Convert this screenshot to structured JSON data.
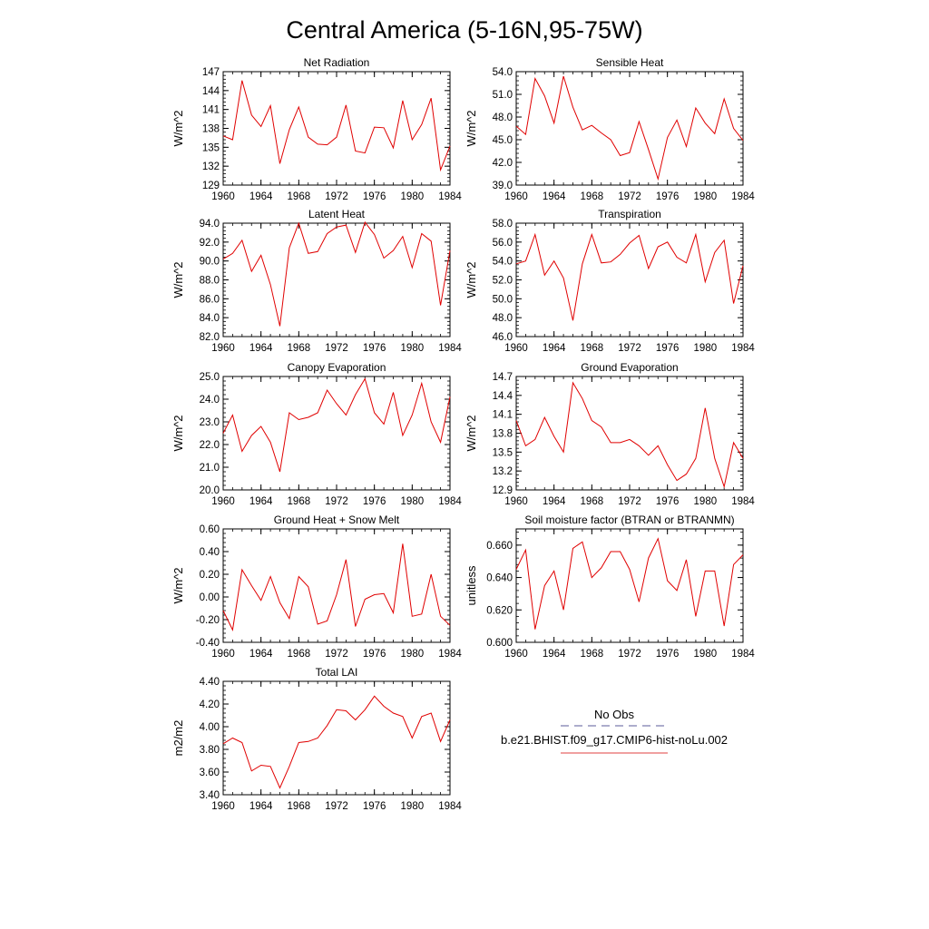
{
  "title": "Central America (5-16N,95-75W)",
  "chart_data": [
    {
      "type": "line",
      "title": "Net Radiation",
      "ylabel": "W/m^2",
      "ylim": [
        129,
        147
      ],
      "yticks": [
        "129",
        "132",
        "135",
        "138",
        "141",
        "144",
        "147"
      ],
      "xlim": [
        1960,
        1984
      ],
      "xticks": [
        "1960",
        "1964",
        "1968",
        "1972",
        "1976",
        "1980",
        "1984"
      ],
      "x": [
        1960,
        1961,
        1962,
        1963,
        1964,
        1965,
        1966,
        1967,
        1968,
        1969,
        1970,
        1971,
        1972,
        1973,
        1974,
        1975,
        1976,
        1977,
        1978,
        1979,
        1980,
        1981,
        1982,
        1983,
        1984
      ],
      "series": [
        {
          "values": [
            136.8,
            136.2,
            145.6,
            140.1,
            138.3,
            141.6,
            132.4,
            137.8,
            141.4,
            136.6,
            135.5,
            135.4,
            136.6,
            141.7,
            134.4,
            134.1,
            138.2,
            138.1,
            134.9,
            142.4,
            136.2,
            138.6,
            142.8,
            131.4,
            135.2
          ]
        }
      ]
    },
    {
      "type": "line",
      "title": "Sensible Heat",
      "ylabel": "W/m^2",
      "ylim": [
        39,
        54
      ],
      "yticks": [
        "39.0",
        "42.0",
        "45.0",
        "48.0",
        "51.0",
        "54.0"
      ],
      "xlim": [
        1960,
        1984
      ],
      "xticks": [
        "1960",
        "1964",
        "1968",
        "1972",
        "1976",
        "1980",
        "1984"
      ],
      "x": [
        1960,
        1961,
        1962,
        1963,
        1964,
        1965,
        1966,
        1967,
        1968,
        1969,
        1970,
        1971,
        1972,
        1973,
        1974,
        1975,
        1976,
        1977,
        1978,
        1979,
        1980,
        1981,
        1982,
        1983,
        1984
      ],
      "series": [
        {
          "values": [
            46.8,
            45.7,
            53.1,
            50.8,
            47.2,
            53.4,
            49.3,
            46.3,
            46.9,
            45.9,
            45.0,
            42.9,
            43.3,
            47.4,
            43.7,
            39.8,
            45.3,
            47.6,
            44.1,
            49.2,
            47.2,
            45.8,
            50.4,
            46.5,
            44.9
          ]
        }
      ]
    },
    {
      "type": "line",
      "title": "Latent Heat",
      "ylabel": "W/m^2",
      "ylim": [
        82,
        94
      ],
      "yticks": [
        "82.0",
        "84.0",
        "86.0",
        "88.0",
        "90.0",
        "92.0",
        "94.0"
      ],
      "xlim": [
        1960,
        1984
      ],
      "xticks": [
        "1960",
        "1964",
        "1968",
        "1972",
        "1976",
        "1980",
        "1984"
      ],
      "x": [
        1960,
        1961,
        1962,
        1963,
        1964,
        1965,
        1966,
        1967,
        1968,
        1969,
        1970,
        1971,
        1972,
        1973,
        1974,
        1975,
        1976,
        1977,
        1978,
        1979,
        1980,
        1981,
        1982,
        1983,
        1984
      ],
      "series": [
        {
          "values": [
            90.2,
            90.8,
            92.2,
            88.9,
            90.6,
            87.5,
            83.1,
            91.4,
            94.0,
            90.8,
            91.0,
            92.9,
            93.6,
            93.8,
            90.9,
            94.1,
            92.8,
            90.3,
            91.1,
            92.6,
            89.3,
            92.9,
            92.1,
            85.3,
            91.1
          ]
        }
      ]
    },
    {
      "type": "line",
      "title": "Transpiration",
      "ylabel": "W/m^2",
      "ylim": [
        46,
        58
      ],
      "yticks": [
        "46.0",
        "48.0",
        "50.0",
        "52.0",
        "54.0",
        "56.0",
        "58.0"
      ],
      "xlim": [
        1960,
        1984
      ],
      "xticks": [
        "1960",
        "1964",
        "1968",
        "1972",
        "1976",
        "1980",
        "1984"
      ],
      "x": [
        1960,
        1961,
        1962,
        1963,
        1964,
        1965,
        1966,
        1967,
        1968,
        1969,
        1970,
        1971,
        1972,
        1973,
        1974,
        1975,
        1976,
        1977,
        1978,
        1979,
        1980,
        1981,
        1982,
        1983,
        1984
      ],
      "series": [
        {
          "values": [
            53.7,
            54.0,
            56.8,
            52.5,
            54.0,
            52.2,
            47.7,
            53.7,
            56.8,
            53.8,
            53.9,
            54.7,
            55.9,
            56.7,
            53.2,
            55.5,
            56.0,
            54.4,
            53.8,
            56.8,
            51.8,
            54.9,
            56.2,
            49.5,
            53.5
          ]
        }
      ]
    },
    {
      "type": "line",
      "title": "Canopy Evaporation",
      "ylabel": "W/m^2",
      "ylim": [
        20,
        25
      ],
      "yticks": [
        "20.0",
        "21.0",
        "22.0",
        "23.0",
        "24.0",
        "25.0"
      ],
      "xlim": [
        1960,
        1984
      ],
      "xticks": [
        "1960",
        "1964",
        "1968",
        "1972",
        "1976",
        "1980",
        "1984"
      ],
      "x": [
        1960,
        1961,
        1962,
        1963,
        1964,
        1965,
        1966,
        1967,
        1968,
        1969,
        1970,
        1971,
        1972,
        1973,
        1974,
        1975,
        1976,
        1977,
        1978,
        1979,
        1980,
        1981,
        1982,
        1983,
        1984
      ],
      "series": [
        {
          "values": [
            22.5,
            23.3,
            21.7,
            22.4,
            22.8,
            22.1,
            20.8,
            23.4,
            23.1,
            23.2,
            23.4,
            24.4,
            23.8,
            23.3,
            24.2,
            24.9,
            23.4,
            22.9,
            24.3,
            22.4,
            23.3,
            24.7,
            23.0,
            22.1,
            24.1
          ]
        }
      ]
    },
    {
      "type": "line",
      "title": "Ground Evaporation",
      "ylabel": "W/m^2",
      "ylim": [
        12.9,
        14.7
      ],
      "yticks": [
        "12.9",
        "13.2",
        "13.5",
        "13.8",
        "14.1",
        "14.4",
        "14.7"
      ],
      "xlim": [
        1960,
        1984
      ],
      "xticks": [
        "1960",
        "1964",
        "1968",
        "1972",
        "1976",
        "1980",
        "1984"
      ],
      "x": [
        1960,
        1961,
        1962,
        1963,
        1964,
        1965,
        1966,
        1967,
        1968,
        1969,
        1970,
        1971,
        1972,
        1973,
        1974,
        1975,
        1976,
        1977,
        1978,
        1979,
        1980,
        1981,
        1982,
        1983,
        1984
      ],
      "series": [
        {
          "values": [
            14.0,
            13.6,
            13.7,
            14.05,
            13.75,
            13.5,
            14.6,
            14.35,
            14.0,
            13.9,
            13.65,
            13.65,
            13.7,
            13.6,
            13.45,
            13.6,
            13.3,
            13.05,
            13.15,
            13.4,
            14.2,
            13.4,
            12.95,
            13.65,
            13.4
          ]
        }
      ]
    },
    {
      "type": "line",
      "title": "Ground Heat + Snow Melt",
      "ylabel": "W/m^2",
      "ylim": [
        -0.4,
        0.6
      ],
      "yticks": [
        "-0.40",
        "-0.20",
        "0.00",
        "0.20",
        "0.40",
        "0.60"
      ],
      "xlim": [
        1960,
        1984
      ],
      "xticks": [
        "1960",
        "1964",
        "1968",
        "1972",
        "1976",
        "1980",
        "1984"
      ],
      "x": [
        1960,
        1961,
        1962,
        1963,
        1964,
        1965,
        1966,
        1967,
        1968,
        1969,
        1970,
        1971,
        1972,
        1973,
        1974,
        1975,
        1976,
        1977,
        1978,
        1979,
        1980,
        1981,
        1982,
        1983,
        1984
      ],
      "series": [
        {
          "values": [
            -0.12,
            -0.29,
            0.24,
            0.1,
            -0.03,
            0.18,
            -0.05,
            -0.19,
            0.18,
            0.09,
            -0.24,
            -0.21,
            0.02,
            0.33,
            -0.26,
            -0.02,
            0.02,
            0.03,
            -0.14,
            0.47,
            -0.17,
            -0.15,
            0.2,
            -0.17,
            -0.25
          ]
        }
      ]
    },
    {
      "type": "line",
      "title": "Soil moisture factor (BTRAN or BTRANMN)",
      "ylabel": "unitless",
      "ylim": [
        0.6,
        0.67
      ],
      "yticks": [
        "0.600",
        "0.620",
        "0.640",
        "0.660"
      ],
      "xlim": [
        1960,
        1984
      ],
      "xticks": [
        "1960",
        "1964",
        "1968",
        "1972",
        "1976",
        "1980",
        "1984"
      ],
      "x": [
        1960,
        1961,
        1962,
        1963,
        1964,
        1965,
        1966,
        1967,
        1968,
        1969,
        1970,
        1971,
        1972,
        1973,
        1974,
        1975,
        1976,
        1977,
        1978,
        1979,
        1980,
        1981,
        1982,
        1983,
        1984
      ],
      "series": [
        {
          "values": [
            0.645,
            0.657,
            0.608,
            0.635,
            0.644,
            0.62,
            0.658,
            0.662,
            0.64,
            0.646,
            0.656,
            0.656,
            0.645,
            0.625,
            0.652,
            0.664,
            0.638,
            0.632,
            0.651,
            0.616,
            0.644,
            0.644,
            0.61,
            0.648,
            0.654
          ]
        }
      ]
    },
    {
      "type": "line",
      "title": "Total LAI",
      "ylabel": "m2/m2",
      "ylim": [
        3.4,
        4.4
      ],
      "yticks": [
        "3.40",
        "3.60",
        "3.80",
        "4.00",
        "4.20",
        "4.40"
      ],
      "xlim": [
        1960,
        1984
      ],
      "xticks": [
        "1960",
        "1964",
        "1968",
        "1972",
        "1976",
        "1980",
        "1984"
      ],
      "x": [
        1960,
        1961,
        1962,
        1963,
        1964,
        1965,
        1966,
        1967,
        1968,
        1969,
        1970,
        1971,
        1972,
        1973,
        1974,
        1975,
        1976,
        1977,
        1978,
        1979,
        1980,
        1981,
        1982,
        1983,
        1984
      ],
      "series": [
        {
          "values": [
            3.85,
            3.9,
            3.86,
            3.61,
            3.66,
            3.65,
            3.46,
            3.65,
            3.86,
            3.87,
            3.9,
            4.01,
            4.15,
            4.14,
            4.06,
            4.15,
            4.27,
            4.18,
            4.12,
            4.09,
            3.9,
            4.09,
            4.12,
            3.87,
            4.06
          ]
        }
      ]
    }
  ],
  "legend": {
    "items": [
      {
        "label": "No Obs",
        "color": "#5b5b9a",
        "style": "dashed"
      },
      {
        "label": "b.e21.BHIST.f09_g17.CMIP6-hist-noLu.002",
        "color": "#e04040",
        "style": "solid"
      }
    ]
  },
  "colors": {
    "model_line": "#e00000",
    "axis": "#000000"
  }
}
